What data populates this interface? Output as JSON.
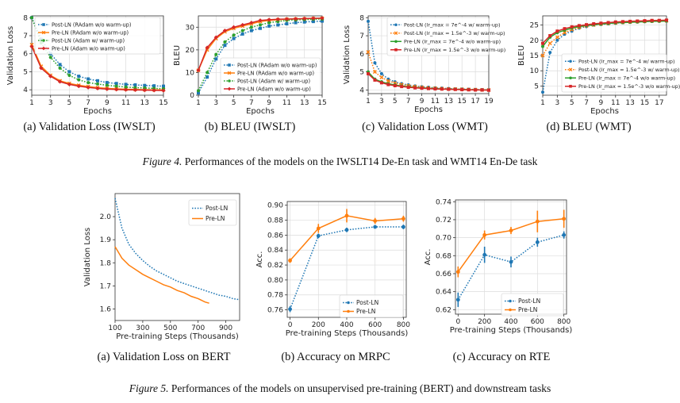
{
  "figure4": {
    "label": "Figure 4.",
    "caption": "Performances of the models on the IWSLT14 De-En task and WMT14 En-De task"
  },
  "figure5": {
    "label": "Figure 5.",
    "caption": "Performances of the models on unsupervised pre-training (BERT) and downstream tasks"
  },
  "colors": {
    "post_ln_blue": "#1f77b4",
    "pre_ln_orange": "#ff7f0e",
    "green": "#2ca02c",
    "red": "#d62728"
  },
  "chart_data": [
    {
      "id": "a4",
      "type": "line",
      "caption": "(a)  Validation Loss (IWSLT)",
      "xlabel": "Epochs",
      "ylabel": "Validation Loss",
      "xlim": [
        1,
        15
      ],
      "ylim": [
        3.7,
        8.1
      ],
      "xticks": [
        1,
        3,
        5,
        7,
        9,
        11,
        13,
        15
      ],
      "xtick_labels": [
        "1",
        "3",
        "5",
        "7",
        "9",
        "11",
        "13",
        "15"
      ],
      "yticks": [
        4,
        5,
        6,
        7,
        8
      ],
      "ytick_labels": [
        "4",
        "5",
        "6",
        "7",
        "8"
      ],
      "grid": true,
      "legend_position": "top-right",
      "x": [
        1,
        2,
        3,
        4,
        5,
        6,
        7,
        8,
        9,
        10,
        11,
        12,
        13,
        14,
        15
      ],
      "series": [
        {
          "name": "Post-LN (RAdam w/o warm-up)",
          "color": "#1f77b4",
          "style": "dotted",
          "marker": "square",
          "values": [
            8.0,
            6.8,
            6.0,
            5.4,
            5.0,
            4.75,
            4.6,
            4.5,
            4.4,
            4.35,
            4.3,
            4.27,
            4.24,
            4.22,
            4.2
          ]
        },
        {
          "name": "Pre-LN (RAdam w/o warm-up)",
          "color": "#ff7f0e",
          "style": "solid",
          "marker": "x",
          "values": [
            6.5,
            5.3,
            4.8,
            4.5,
            4.35,
            4.25,
            4.18,
            4.12,
            4.08,
            4.05,
            4.03,
            4.02,
            4.01,
            4.0,
            4.0
          ]
        },
        {
          "name": "Post-LN (Adam w/ warm-up)",
          "color": "#2ca02c",
          "style": "dotted",
          "marker": "circle",
          "values": [
            8.0,
            6.6,
            5.8,
            5.2,
            4.8,
            4.55,
            4.4,
            4.32,
            4.25,
            4.2,
            4.15,
            4.12,
            4.1,
            4.08,
            4.06
          ]
        },
        {
          "name": "Pre-LN (Adam w/o warm-up)",
          "color": "#d62728",
          "style": "solid",
          "marker": "diamond",
          "values": [
            6.4,
            5.2,
            4.75,
            4.45,
            4.3,
            4.2,
            4.13,
            4.08,
            4.04,
            4.02,
            4.0,
            3.99,
            3.98,
            3.97,
            3.96
          ]
        }
      ]
    },
    {
      "id": "b4",
      "type": "line",
      "caption": "(b)  BLEU (IWSLT)",
      "xlabel": "Epochs",
      "ylabel": "BLEU",
      "xlim": [
        1,
        15
      ],
      "ylim": [
        0,
        35
      ],
      "xticks": [
        1,
        3,
        5,
        7,
        9,
        11,
        13,
        15
      ],
      "xtick_labels": [
        "1",
        "3",
        "5",
        "7",
        "9",
        "11",
        "13",
        "15"
      ],
      "yticks": [
        0,
        10,
        20,
        30
      ],
      "ytick_labels": [
        "0",
        "10",
        "20",
        "30"
      ],
      "grid": true,
      "legend_position": "bottom-right",
      "x": [
        1,
        2,
        3,
        4,
        5,
        6,
        7,
        8,
        9,
        10,
        11,
        12,
        13,
        14,
        15
      ],
      "series": [
        {
          "name": "Post-LN (RAdam w/o warm-up)",
          "color": "#1f77b4",
          "style": "dotted",
          "marker": "square",
          "values": [
            1,
            8,
            16,
            22,
            25,
            27,
            28.5,
            29.5,
            30.5,
            31,
            31.5,
            32,
            32.3,
            32.5,
            32.7
          ]
        },
        {
          "name": "Pre-LN (RAdam w/o warm-up)",
          "color": "#ff7f0e",
          "style": "solid",
          "marker": "x",
          "values": [
            11,
            20,
            25,
            28,
            29.5,
            30.5,
            31.5,
            32.5,
            33,
            33.3,
            33.5,
            33.6,
            33.7,
            33.8,
            33.9
          ]
        },
        {
          "name": "Post-LN (Adam w/ warm-up)",
          "color": "#2ca02c",
          "style": "dotted",
          "marker": "circle",
          "values": [
            2,
            10,
            18,
            23.5,
            26.5,
            28.5,
            30,
            31,
            32,
            32.5,
            33,
            33.2,
            33.4,
            33.5,
            33.6
          ]
        },
        {
          "name": "Pre-LN (Adam w/o warm-up)",
          "color": "#d62728",
          "style": "solid",
          "marker": "diamond",
          "values": [
            11,
            21,
            25.5,
            28.5,
            30,
            31,
            32,
            33,
            33.3,
            33.5,
            33.6,
            33.7,
            33.8,
            33.9,
            34
          ]
        }
      ]
    },
    {
      "id": "c4",
      "type": "line",
      "caption": "(c)  Validation Loss (WMT)",
      "xlabel": "Epochs",
      "ylabel": "Validation Loss",
      "xlim": [
        1,
        19
      ],
      "ylim": [
        3.8,
        8.1
      ],
      "xticks": [
        1,
        3,
        5,
        7,
        9,
        11,
        13,
        15,
        17,
        19
      ],
      "xtick_labels": [
        "1",
        "3",
        "5",
        "7",
        "9",
        "11",
        "13",
        "15",
        "17",
        "19"
      ],
      "yticks": [
        4,
        5,
        6,
        7,
        8
      ],
      "ytick_labels": [
        "4",
        "5",
        "6",
        "7",
        "8"
      ],
      "grid": true,
      "legend_position": "top-right",
      "x": [
        1,
        2,
        3,
        4,
        5,
        6,
        7,
        8,
        9,
        10,
        11,
        12,
        13,
        14,
        15,
        16,
        17,
        18,
        19
      ],
      "series": [
        {
          "name": "Post-LN (lr_max = 7e^-4 w/ warm-up)",
          "color": "#1f77b4",
          "style": "dotted",
          "marker": "circle",
          "values": [
            7.8,
            5.5,
            4.9,
            4.6,
            4.45,
            4.35,
            4.28,
            4.22,
            4.18,
            4.15,
            4.12,
            4.1,
            4.08,
            4.06,
            4.05,
            4.04,
            4.03,
            4.02,
            4.01
          ]
        },
        {
          "name": "Post-LN (lr_max = 1.5e^-3 w/ warm-up)",
          "color": "#ff7f0e",
          "style": "dotted",
          "marker": "x",
          "values": [
            6.1,
            5.0,
            4.7,
            4.5,
            4.38,
            4.3,
            4.24,
            4.19,
            4.15,
            4.12,
            4.1,
            4.08,
            4.06,
            4.05,
            4.04,
            4.03,
            4.02,
            4.01,
            4.0
          ]
        },
        {
          "name": "Pre-LN (lr_max = 7e^-4 w/o warm-up)",
          "color": "#2ca02c",
          "style": "solid",
          "marker": "circle",
          "values": [
            5.0,
            4.6,
            4.45,
            4.35,
            4.28,
            4.22,
            4.18,
            4.14,
            4.12,
            4.1,
            4.08,
            4.06,
            4.05,
            4.04,
            4.03,
            4.02,
            4.01,
            4.0,
            4.0
          ]
        },
        {
          "name": "Pre-LN (lr_max = 1.5e^-3 w/o warm-up)",
          "color": "#d62728",
          "style": "solid",
          "marker": "square",
          "values": [
            4.9,
            4.55,
            4.4,
            4.3,
            4.24,
            4.19,
            4.15,
            4.12,
            4.1,
            4.08,
            4.06,
            4.05,
            4.04,
            4.03,
            4.02,
            4.01,
            4.0,
            4.0,
            3.99
          ]
        }
      ]
    },
    {
      "id": "d4",
      "type": "line",
      "caption": "(d)  BLEU (WMT)",
      "xlabel": "Epochs",
      "ylabel": "BLEU",
      "xlim": [
        1,
        18
      ],
      "ylim": [
        2,
        28
      ],
      "xticks": [
        1,
        3,
        5,
        7,
        9,
        11,
        13,
        15,
        17
      ],
      "xtick_labels": [
        "1",
        "3",
        "5",
        "7",
        "9",
        "11",
        "13",
        "15",
        "17"
      ],
      "yticks": [
        5,
        10,
        15,
        20,
        25
      ],
      "ytick_labels": [
        "5",
        "10",
        "15",
        "20",
        "25"
      ],
      "grid": true,
      "legend_position": "bottom-right",
      "x": [
        1,
        2,
        3,
        4,
        5,
        6,
        7,
        8,
        9,
        10,
        11,
        12,
        13,
        14,
        15,
        16,
        17,
        18
      ],
      "series": [
        {
          "name": "Post-LN (lr_max = 7e^-4 w/ warm-up)",
          "color": "#1f77b4",
          "style": "dotted",
          "marker": "circle",
          "values": [
            3,
            16,
            20,
            22,
            23,
            24,
            24.5,
            25,
            25.2,
            25.4,
            25.6,
            25.8,
            26,
            26,
            26.1,
            26.2,
            26.3,
            26.3
          ]
        },
        {
          "name": "Post-LN (lr_max = 1.5e^-3 w/ warm-up)",
          "color": "#ff7f0e",
          "style": "dotted",
          "marker": "x",
          "values": [
            15,
            19,
            21,
            22.5,
            23.5,
            24.2,
            24.7,
            25,
            25.3,
            25.5,
            25.7,
            25.9,
            26,
            26.1,
            26.2,
            26.3,
            26.4,
            26.4
          ]
        },
        {
          "name": "Pre-LN (lr_max = 7e^-4 w/o warm-up)",
          "color": "#2ca02c",
          "style": "solid",
          "marker": "circle",
          "values": [
            18,
            21,
            22.5,
            23.3,
            24,
            24.5,
            24.8,
            25.1,
            25.3,
            25.5,
            25.7,
            25.8,
            25.9,
            26,
            26.1,
            26.2,
            26.2,
            26.3
          ]
        },
        {
          "name": "Pre-LN (lr_max = 1.5e^-3 w/o warm-up)",
          "color": "#d62728",
          "style": "solid",
          "marker": "square",
          "values": [
            19,
            21.5,
            23,
            23.8,
            24.4,
            24.8,
            25.1,
            25.4,
            25.6,
            25.8,
            26,
            26.1,
            26.2,
            26.3,
            26.4,
            26.5,
            26.5,
            26.6
          ]
        }
      ]
    },
    {
      "id": "a5",
      "type": "line",
      "caption": "(a)  Validation Loss on BERT",
      "xlabel": "Pre-training Steps (Thousands)",
      "ylabel": "Validation Loss",
      "xlim": [
        100,
        1000
      ],
      "ylim": [
        1.55,
        2.1
      ],
      "xticks": [
        100,
        300,
        500,
        700,
        900
      ],
      "xtick_labels": [
        "100",
        "300",
        "500",
        "700",
        "900"
      ],
      "yticks": [
        1.6,
        1.7,
        1.8,
        1.9,
        2.0
      ],
      "ytick_labels": [
        "1.6",
        "1.7",
        "1.8",
        "1.9",
        "2.0"
      ],
      "grid": false,
      "legend_position": "top-right",
      "series": [
        {
          "name": "Post-LN",
          "color": "#1f77b4",
          "style": "dotted",
          "marker": "none",
          "x": [
            100,
            150,
            200,
            250,
            300,
            350,
            400,
            450,
            500,
            550,
            600,
            650,
            700,
            750,
            800,
            850,
            900,
            950,
            1000
          ],
          "values": [
            2.08,
            1.95,
            1.88,
            1.84,
            1.81,
            1.785,
            1.765,
            1.75,
            1.735,
            1.72,
            1.71,
            1.7,
            1.69,
            1.68,
            1.67,
            1.66,
            1.655,
            1.645,
            1.64
          ]
        },
        {
          "name": "Pre-LN",
          "color": "#ff7f0e",
          "style": "solid",
          "marker": "none",
          "x": [
            100,
            150,
            200,
            250,
            300,
            350,
            400,
            450,
            500,
            550,
            600,
            650,
            700,
            750,
            780
          ],
          "values": [
            1.87,
            1.82,
            1.79,
            1.77,
            1.75,
            1.735,
            1.72,
            1.705,
            1.695,
            1.68,
            1.67,
            1.655,
            1.645,
            1.63,
            1.625
          ]
        }
      ]
    },
    {
      "id": "b5",
      "type": "line",
      "caption": "(b)  Accuracy on MRPC",
      "xlabel": "Pre-training Steps (Thousands)",
      "ylabel": "Acc.",
      "xlim": [
        -20,
        820
      ],
      "ylim": [
        0.75,
        0.905
      ],
      "xticks": [
        0,
        200,
        400,
        600,
        800
      ],
      "xtick_labels": [
        "0",
        "200",
        "400",
        "600",
        "800"
      ],
      "yticks": [
        0.76,
        0.78,
        0.8,
        0.82,
        0.84,
        0.86,
        0.88,
        0.9
      ],
      "ytick_labels": [
        "0.76",
        "0.78",
        "0.80",
        "0.82",
        "0.84",
        "0.86",
        "0.88",
        "0.90"
      ],
      "grid": true,
      "legend_position": "bottom-right",
      "x": [
        0,
        200,
        400,
        600,
        800
      ],
      "series": [
        {
          "name": "Post-LN",
          "color": "#1f77b4",
          "style": "dotted",
          "marker": "circle",
          "values": [
            0.761,
            0.859,
            0.867,
            0.871,
            0.871
          ],
          "err": [
            0.004,
            0.003,
            0.003,
            0.002,
            0.003
          ]
        },
        {
          "name": "Pre-LN",
          "color": "#ff7f0e",
          "style": "solid",
          "marker": "circle",
          "values": [
            0.826,
            0.869,
            0.886,
            0.879,
            0.882
          ],
          "err": [
            0.003,
            0.006,
            0.009,
            0.004,
            0.004
          ]
        }
      ]
    },
    {
      "id": "c5",
      "type": "line",
      "caption": "(c)  Accuracy on RTE",
      "xlabel": "Pre-training Steps (Thousands)",
      "ylabel": "Acc.",
      "xlim": [
        -20,
        820
      ],
      "ylim": [
        0.615,
        0.742
      ],
      "xticks": [
        0,
        200,
        400,
        600,
        800
      ],
      "xtick_labels": [
        "0",
        "200",
        "400",
        "600",
        "800"
      ],
      "yticks": [
        0.62,
        0.64,
        0.66,
        0.68,
        0.7,
        0.72,
        0.74
      ],
      "ytick_labels": [
        "0.62",
        "0.64",
        "0.66",
        "0.68",
        "0.70",
        "0.72",
        "0.74"
      ],
      "grid": true,
      "legend_position": "bottom-right",
      "x": [
        0,
        200,
        400,
        600,
        800
      ],
      "series": [
        {
          "name": "Post-LN",
          "color": "#1f77b4",
          "style": "dotted",
          "marker": "circle",
          "values": [
            0.631,
            0.681,
            0.673,
            0.695,
            0.703
          ],
          "err": [
            0.008,
            0.009,
            0.006,
            0.005,
            0.004
          ]
        },
        {
          "name": "Pre-LN",
          "color": "#ff7f0e",
          "style": "solid",
          "marker": "circle",
          "values": [
            0.662,
            0.703,
            0.708,
            0.718,
            0.721
          ],
          "err": [
            0.006,
            0.005,
            0.004,
            0.012,
            0.01
          ]
        }
      ]
    }
  ]
}
